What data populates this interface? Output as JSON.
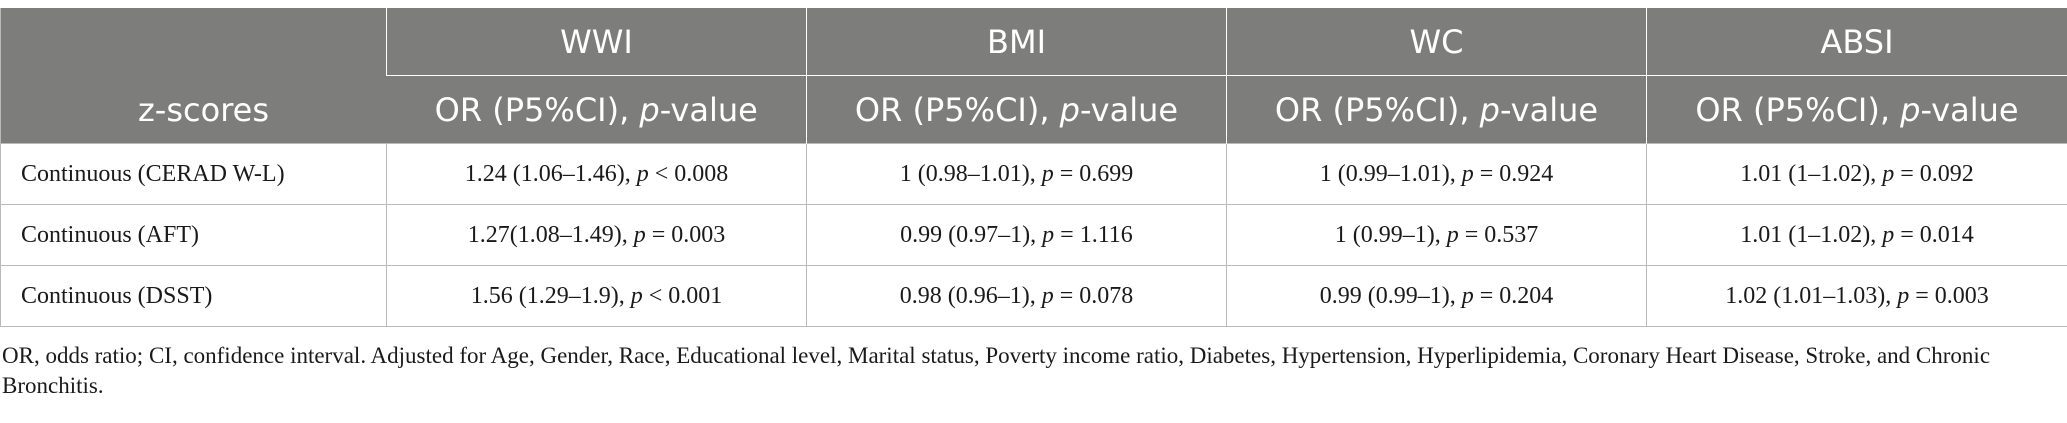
{
  "table": {
    "row_header_label": "z-scores",
    "groups": [
      "WWI",
      "BMI",
      "WC",
      "ABSI"
    ],
    "stat_label_prefix": "OR (P5%CI), ",
    "stat_label_p": "p",
    "stat_label_suffix": "-value",
    "rows": [
      {
        "label": "Continuous (CERAD W-L)",
        "cells": [
          {
            "or": "1.24 (1.06–1.46), ",
            "p": "p",
            "rel": " < 0.008"
          },
          {
            "or": "1 (0.98–1.01), ",
            "p": "p",
            "rel": " = 0.699"
          },
          {
            "or": "1 (0.99–1.01), ",
            "p": "p",
            "rel": " = 0.924"
          },
          {
            "or": "1.01 (1–1.02), ",
            "p": "p",
            "rel": " = 0.092"
          }
        ]
      },
      {
        "label": "Continuous (AFT)",
        "cells": [
          {
            "or": "1.27(1.08–1.49), ",
            "p": "p",
            "rel": " = 0.003"
          },
          {
            "or": "0.99 (0.97–1), ",
            "p": "p",
            "rel": " = 1.116"
          },
          {
            "or": "1 (0.99–1), ",
            "p": "p",
            "rel": " = 0.537"
          },
          {
            "or": "1.01 (1–1.02), ",
            "p": "p",
            "rel": " = 0.014"
          }
        ]
      },
      {
        "label": "Continuous (DSST)",
        "cells": [
          {
            "or": "1.56 (1.29–1.9), ",
            "p": "p",
            "rel": " < 0.001"
          },
          {
            "or": "0.98 (0.96–1), ",
            "p": "p",
            "rel": " = 0.078"
          },
          {
            "or": "0.99 (0.99–1), ",
            "p": "p",
            "rel": " = 0.204"
          },
          {
            "or": "1.02 (1.01–1.03), ",
            "p": "p",
            "rel": " = 0.003"
          }
        ]
      }
    ]
  },
  "footnote": "OR, odds ratio; CI, confidence interval. Adjusted for Age, Gender, Race, Educational level, Marital status, Poverty income ratio, Diabetes, Hypertension, Hyperlipidemia, Coronary Heart Disease, Stroke, and Chronic Bronchitis."
}
